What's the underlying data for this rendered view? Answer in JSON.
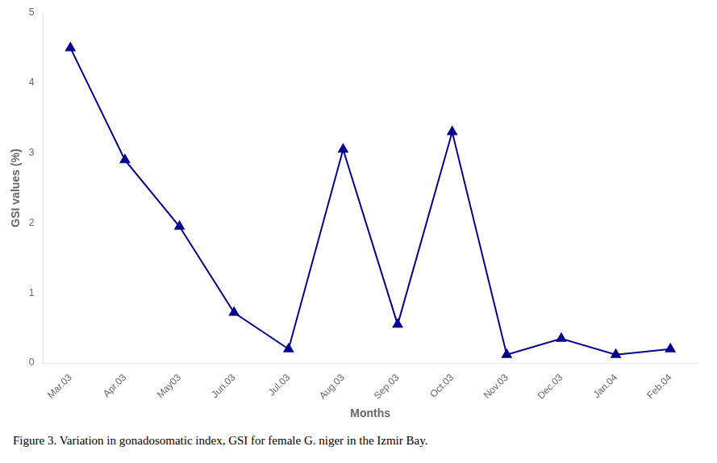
{
  "chart_data": {
    "type": "line",
    "categories": [
      "Mar.03",
      "Apr.03",
      "May03",
      "Jun.03",
      "Jul.03",
      "Aug.03",
      "Sep.03",
      "Oct.03",
      "Nov.03",
      "Dec.03",
      "Jan.04",
      "Feb.04"
    ],
    "values": [
      4.5,
      2.9,
      1.95,
      0.72,
      0.2,
      3.05,
      0.55,
      3.3,
      0.12,
      0.35,
      0.12,
      0.2
    ],
    "color": "#00008B",
    "marker": "triangle",
    "xlabel": "Months",
    "ylabel": "GSI values (%)",
    "caption": "Figure 3. Variation in gonadosomatic index, GSI for female G. niger in the Izmir Bay.",
    "ylim": [
      0,
      5
    ],
    "yticks": [
      0,
      1,
      2,
      3,
      4,
      5
    ],
    "grid": false
  }
}
